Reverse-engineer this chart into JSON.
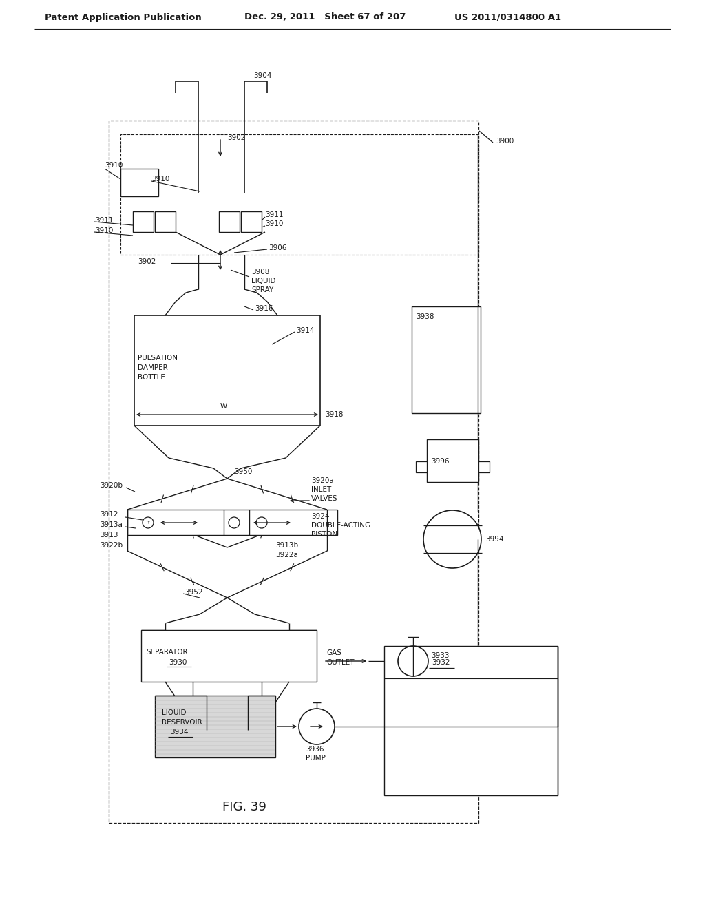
{
  "header_left": "Patent Application Publication",
  "header_mid": "Dec. 29, 2011   Sheet 67 of 207",
  "header_right": "US 2011/0314800 A1",
  "figure_label": "FIG. 39",
  "bg_color": "#ffffff",
  "line_color": "#1a1a1a",
  "label_fontsize": 7.5,
  "header_fontsize": 9.5,
  "fig_label_fontsize": 13
}
